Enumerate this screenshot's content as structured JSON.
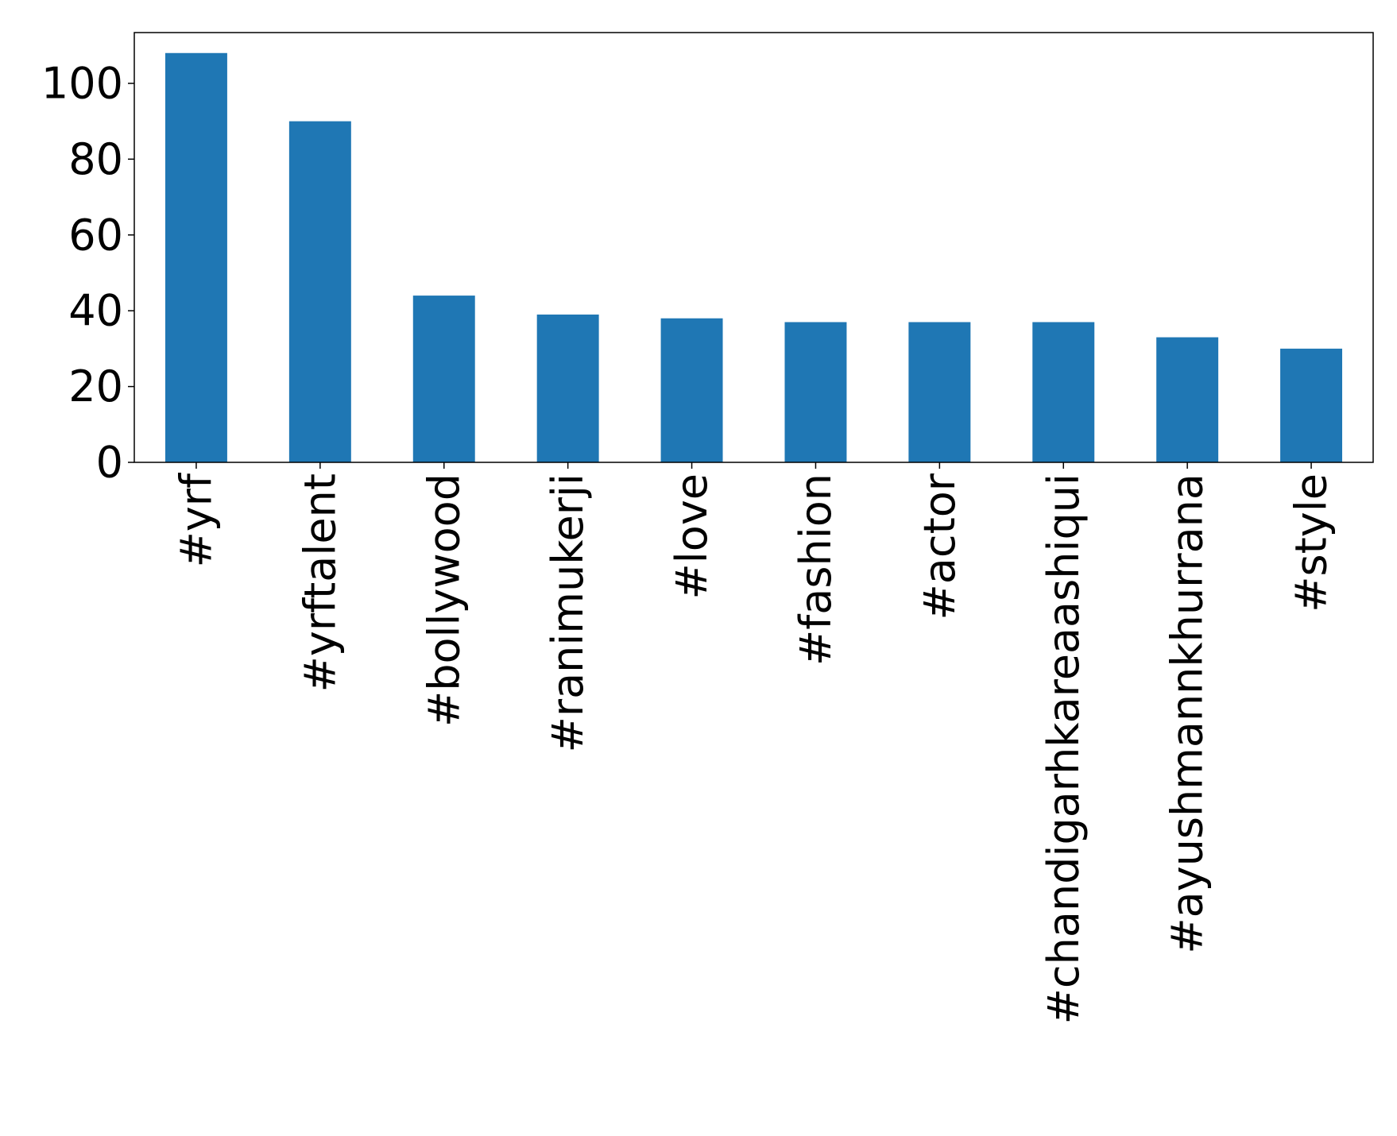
{
  "chart_data": {
    "type": "bar",
    "categories": [
      "#yrf",
      "#yrftalent",
      "#bollywood",
      "#ranimukerji",
      "#love",
      "#fashion",
      "#actor",
      "#chandigarhkareaashiqui",
      "#ayushmannkhurrana",
      "#style"
    ],
    "values": [
      108,
      90,
      44,
      39,
      38,
      37,
      37,
      37,
      33,
      30
    ],
    "color": "#1f77b4",
    "ylim": [
      0,
      113.4
    ],
    "yticks": [
      0,
      20,
      40,
      60,
      80,
      100
    ],
    "grid": false
  }
}
